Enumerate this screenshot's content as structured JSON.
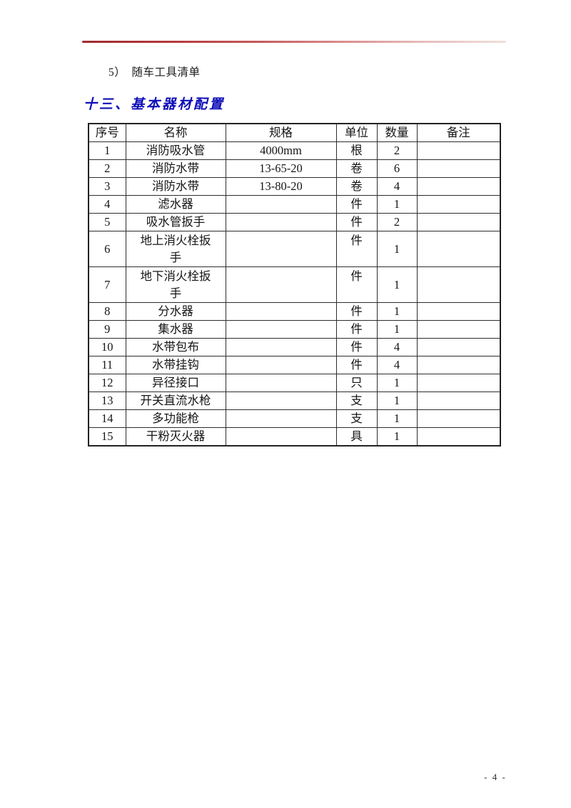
{
  "page": {
    "note": "5）　随车工具清单",
    "heading": "十三、基本器材配置",
    "page_number": "- 4 -"
  },
  "colors": {
    "heading_blue": "#0e0eb8",
    "rule_red": "#b63a3e",
    "table_border": "#2d2d2d"
  },
  "table": {
    "headers": [
      "序号",
      "名称",
      "规格",
      "单位",
      "数量",
      "备注"
    ],
    "rows": [
      {
        "no": "1",
        "name": "消防吸水管",
        "spec": "4000mm",
        "unit": "根",
        "qty": "2",
        "remark": ""
      },
      {
        "no": "2",
        "name": "消防水带",
        "spec": "13-65-20",
        "unit": "卷",
        "qty": "6",
        "remark": ""
      },
      {
        "no": "3",
        "name": "消防水带",
        "spec": "13-80-20",
        "unit": "卷",
        "qty": "4",
        "remark": ""
      },
      {
        "no": "4",
        "name": "滤水器",
        "spec": "",
        "unit": "件",
        "qty": "1",
        "remark": ""
      },
      {
        "no": "5",
        "name": "吸水管扳手",
        "spec": "",
        "unit": "件",
        "qty": "2",
        "remark": ""
      },
      {
        "no": "6",
        "name": "地上消火栓扳手",
        "spec": "",
        "unit": "件",
        "qty": "1",
        "remark": ""
      },
      {
        "no": "7",
        "name": "地下消火栓扳手",
        "spec": "",
        "unit": "件",
        "qty": "1",
        "remark": ""
      },
      {
        "no": "8",
        "name": "分水器",
        "spec": "",
        "unit": "件",
        "qty": "1",
        "remark": ""
      },
      {
        "no": "9",
        "name": "集水器",
        "spec": "",
        "unit": "件",
        "qty": "1",
        "remark": ""
      },
      {
        "no": "10",
        "name": "水带包布",
        "spec": "",
        "unit": "件",
        "qty": "4",
        "remark": ""
      },
      {
        "no": "11",
        "name": "水带挂钩",
        "spec": "",
        "unit": "件",
        "qty": "4",
        "remark": ""
      },
      {
        "no": "12",
        "name": "异径接口",
        "spec": "",
        "unit": "只",
        "qty": "1",
        "remark": ""
      },
      {
        "no": "13",
        "name": "开关直流水枪",
        "spec": "",
        "unit": "支",
        "qty": "1",
        "remark": ""
      },
      {
        "no": "14",
        "name": "多功能枪",
        "spec": "",
        "unit": "支",
        "qty": "1",
        "remark": ""
      },
      {
        "no": "15",
        "name": "干粉灭火器",
        "spec": "",
        "unit": "具",
        "qty": "1",
        "remark": ""
      }
    ]
  }
}
